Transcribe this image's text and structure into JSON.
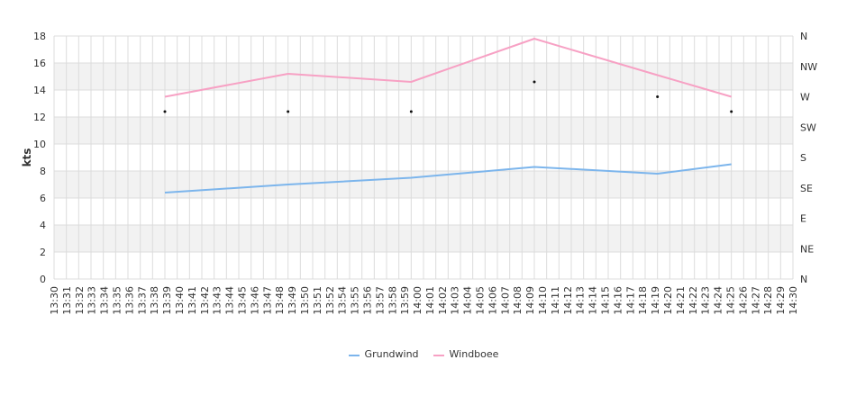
{
  "chart_data": {
    "type": "line",
    "ylabel": "kts",
    "ylim": [
      0,
      18
    ],
    "yticks": [
      0,
      2,
      4,
      6,
      8,
      10,
      12,
      14,
      16,
      18
    ],
    "right_axis_labels": [
      "N",
      "NE",
      "E",
      "SE",
      "S",
      "SW",
      "W",
      "NW",
      "N"
    ],
    "x_tick_labels": [
      "13:30",
      "13:31",
      "13:32",
      "13:33",
      "13:34",
      "13:35",
      "13:36",
      "13:37",
      "13:38",
      "13:39",
      "13:40",
      "13:41",
      "13:42",
      "13:43",
      "13:44",
      "13:45",
      "13:46",
      "13:47",
      "13:48",
      "13:49",
      "13:50",
      "13:51",
      "13:52",
      "13:54",
      "13:55",
      "13:56",
      "13:57",
      "13:58",
      "13:59",
      "14:00",
      "14:01",
      "14:02",
      "14:03",
      "14:04",
      "14:05",
      "14:06",
      "14:07",
      "14:08",
      "14:09",
      "14:10",
      "14:11",
      "14:12",
      "14:13",
      "14:14",
      "14:15",
      "14:16",
      "14:17",
      "14:18",
      "14:19",
      "14:20",
      "14:21",
      "14:22",
      "14:23",
      "14:24",
      "14:25",
      "14:26",
      "14:27",
      "14:28",
      "14:29",
      "14:30"
    ],
    "grid": true,
    "legend_position": "bottom-center",
    "series": [
      {
        "name": "Grundwind",
        "color": "#7cb5ec",
        "x": [
          "13:39",
          "13:49",
          "13:59",
          "14:09",
          "14:19",
          "14:25"
        ],
        "values": [
          6.4,
          7.0,
          7.5,
          8.3,
          7.8,
          8.5
        ]
      },
      {
        "name": "Windboee",
        "color": "#f7a1c4",
        "x": [
          "13:39",
          "13:49",
          "13:59",
          "14:09",
          "14:19",
          "14:25"
        ],
        "values": [
          13.5,
          15.2,
          14.6,
          17.8,
          15.1,
          13.5
        ]
      }
    ],
    "direction_markers": {
      "x": [
        "13:39",
        "13:49",
        "13:59",
        "14:09",
        "14:19",
        "14:25"
      ],
      "values": [
        12.4,
        12.4,
        12.4,
        14.6,
        13.5,
        12.4
      ]
    }
  }
}
